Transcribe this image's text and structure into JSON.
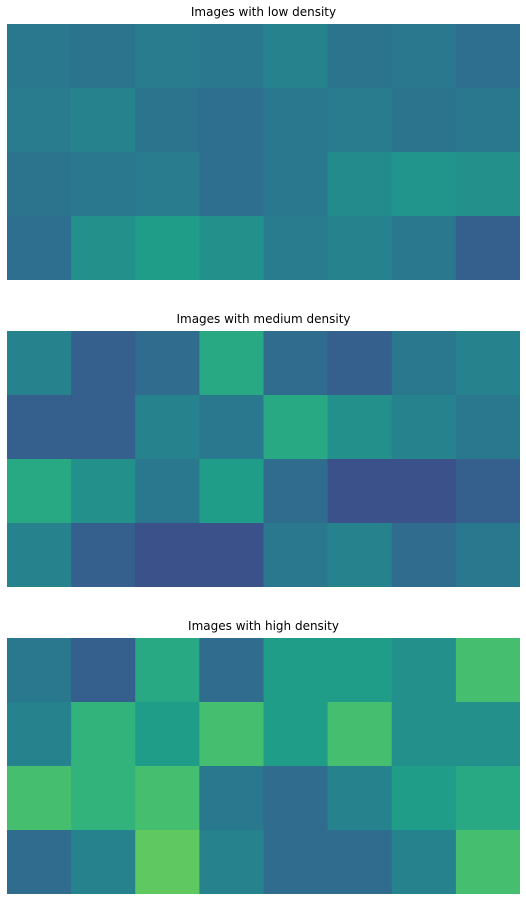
{
  "colors": {
    "viridis": [
      "#440154",
      "#482878",
      "#3e4989",
      "#31688e",
      "#26828e",
      "#1f9e89",
      "#35b779",
      "#6ece58",
      "#b5de2b",
      "#fde725"
    ]
  },
  "chart_data": [
    {
      "type": "heatmap",
      "title": "Images with low density",
      "colormap": "viridis",
      "grid": false,
      "rows": 4,
      "cols": 8,
      "tiles": [
        [
          0.4,
          0.38,
          0.42,
          0.4,
          0.45,
          0.38,
          0.4,
          0.36
        ],
        [
          0.42,
          0.45,
          0.38,
          0.36,
          0.4,
          0.42,
          0.38,
          0.4
        ],
        [
          0.38,
          0.4,
          0.42,
          0.36,
          0.4,
          0.48,
          0.52,
          0.5
        ],
        [
          0.36,
          0.5,
          0.55,
          0.5,
          0.42,
          0.45,
          0.4,
          0.3
        ]
      ]
    },
    {
      "type": "heatmap",
      "title": "Images with medium density",
      "colormap": "viridis",
      "grid": false,
      "rows": 4,
      "cols": 8,
      "tiles": [
        [
          0.45,
          0.3,
          0.35,
          0.6,
          0.35,
          0.3,
          0.4,
          0.45
        ],
        [
          0.3,
          0.3,
          0.45,
          0.4,
          0.6,
          0.5,
          0.45,
          0.4
        ],
        [
          0.6,
          0.5,
          0.4,
          0.55,
          0.35,
          0.25,
          0.25,
          0.3
        ],
        [
          0.45,
          0.3,
          0.25,
          0.25,
          0.4,
          0.45,
          0.35,
          0.4
        ]
      ]
    },
    {
      "type": "heatmap",
      "title": "Images with high density",
      "colormap": "viridis",
      "grid": false,
      "rows": 4,
      "cols": 8,
      "tiles": [
        [
          0.4,
          0.3,
          0.6,
          0.35,
          0.55,
          0.55,
          0.5,
          0.7
        ],
        [
          0.45,
          0.65,
          0.55,
          0.7,
          0.55,
          0.7,
          0.5,
          0.5
        ],
        [
          0.7,
          0.65,
          0.7,
          0.4,
          0.35,
          0.45,
          0.55,
          0.6
        ],
        [
          0.35,
          0.45,
          0.75,
          0.45,
          0.35,
          0.35,
          0.45,
          0.7
        ]
      ]
    }
  ]
}
